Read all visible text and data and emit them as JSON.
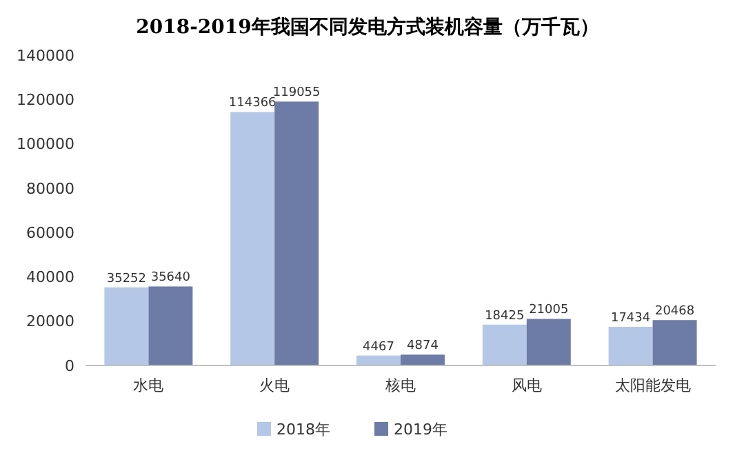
{
  "chart_data": {
    "type": "bar",
    "title": "2018-2019年我国不同发电方式装机容量（万千瓦）",
    "categories": [
      "水电",
      "火电",
      "核电",
      "风电",
      "太阳能发电"
    ],
    "series": [
      {
        "name": "2018年",
        "color": "#b4c7e7",
        "values": [
          35252,
          114366,
          4467,
          18425,
          17434
        ]
      },
      {
        "name": "2019年",
        "color": "#6d7ca6",
        "values": [
          35640,
          119055,
          4874,
          21005,
          20468
        ]
      }
    ],
    "ylim": [
      0,
      140000
    ],
    "yticks": [
      0,
      20000,
      40000,
      60000,
      80000,
      100000,
      120000,
      140000
    ],
    "data_labels": true,
    "legend": "bottom",
    "grid": false
  }
}
